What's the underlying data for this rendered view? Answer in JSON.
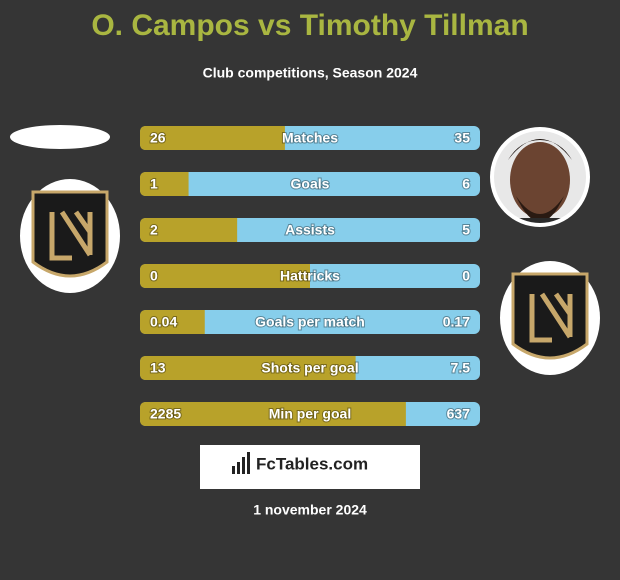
{
  "header": {
    "title": "O. Campos vs Timothy Tillman",
    "subtitle": "Club competitions, Season 2024"
  },
  "stats": [
    {
      "label": "Matches",
      "left": 26,
      "right": 35
    },
    {
      "label": "Goals",
      "left": 1,
      "right": 6
    },
    {
      "label": "Assists",
      "left": 2,
      "right": 5
    },
    {
      "label": "Hattricks",
      "left": 0,
      "right": 0
    },
    {
      "label": "Goals per match",
      "left": 0.04,
      "right": 0.17
    },
    {
      "label": "Shots per goal",
      "left": 13,
      "right": 7.5
    },
    {
      "label": "Min per goal",
      "left": 2285,
      "right": 637
    }
  ],
  "brand": "FcTables.com",
  "date": "1 november 2024"
}
